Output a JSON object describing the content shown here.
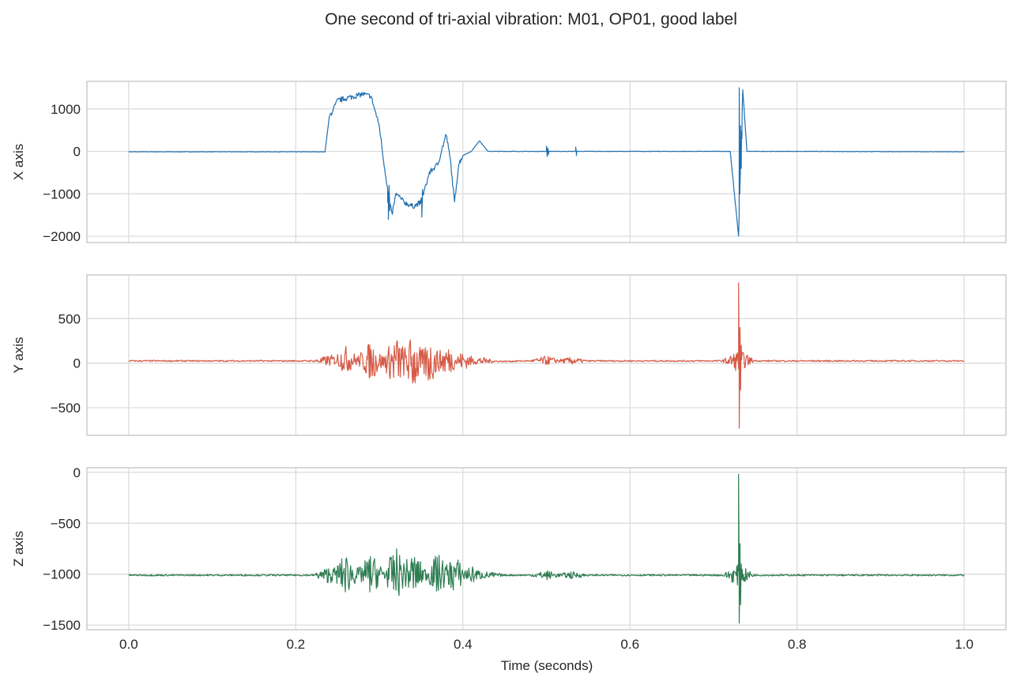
{
  "chart_data": {
    "type": "line",
    "title": "One second of tri-axial vibration: M01, OP01, good label",
    "xlabel": "Time (seconds)",
    "xlim": [
      -0.05,
      1.05
    ],
    "xticks": [
      0.0,
      0.2,
      0.4,
      0.6,
      0.8,
      1.0
    ],
    "xtick_labels": [
      "0.0",
      "0.2",
      "0.4",
      "0.6",
      "0.8",
      "1.0"
    ],
    "grid": true,
    "panels": [
      {
        "ylabel": "X axis",
        "color": "#1f6fb0",
        "ylim": [
          -2150,
          1650
        ],
        "yticks": [
          1000,
          0,
          -1000,
          -2000
        ],
        "ytick_labels": [
          "1000",
          "0",
          "−1000",
          "−2000"
        ],
        "x": [
          0,
          0.1,
          0.2,
          0.235,
          0.24,
          0.25,
          0.26,
          0.27,
          0.28,
          0.29,
          0.3,
          0.305,
          0.31,
          0.315,
          0.32,
          0.33,
          0.34,
          0.35,
          0.36,
          0.37,
          0.38,
          0.385,
          0.39,
          0.395,
          0.4,
          0.41,
          0.42,
          0.43,
          0.45,
          0.5,
          0.52,
          0.535,
          0.55,
          0.6,
          0.7,
          0.72,
          0.73,
          0.735,
          0.74,
          0.76,
          0.8,
          1.0
        ],
        "y": [
          -10,
          -10,
          -10,
          -10,
          800,
          1200,
          1250,
          1300,
          1350,
          1300,
          600,
          -200,
          -900,
          -1500,
          -1000,
          -1200,
          -1300,
          -1200,
          -500,
          -300,
          400,
          -200,
          -1200,
          -300,
          -100,
          0,
          250,
          0,
          0,
          0,
          0,
          0,
          0,
          0,
          0,
          0,
          -2000,
          1450,
          0,
          0,
          0,
          -10
        ],
        "spikes": [
          {
            "x": 0.31,
            "values": [
              -1200,
              -1600,
              -800,
              -1400
            ]
          },
          {
            "x": 0.35,
            "values": [
              -1100,
              -1550,
              -900
            ]
          },
          {
            "x": 0.5,
            "values": [
              120,
              -120,
              80,
              -80
            ]
          },
          {
            "x": 0.535,
            "values": [
              100,
              -100
            ]
          },
          {
            "x": 0.73,
            "values": [
              -2000,
              1500,
              -800,
              600,
              -400,
              300
            ]
          }
        ]
      },
      {
        "ylabel": "Y axis",
        "color": "#d65a46",
        "ylim": [
          -810,
          990
        ],
        "yticks": [
          500,
          0,
          -500
        ],
        "ytick_labels": [
          "500",
          "0",
          "−500"
        ],
        "x": [
          0,
          0.2,
          0.235,
          0.25,
          0.28,
          0.3,
          0.33,
          0.35,
          0.38,
          0.4,
          0.42,
          0.45,
          0.5,
          0.54,
          0.6,
          0.7,
          0.72,
          0.73,
          0.74,
          0.76,
          0.8,
          1.0
        ],
        "y": [
          25,
          25,
          25,
          40,
          30,
          20,
          15,
          0,
          30,
          25,
          25,
          20,
          30,
          25,
          25,
          25,
          25,
          25,
          30,
          25,
          25,
          25
        ],
        "envelope": [
          {
            "x": 0.24,
            "amp": 60
          },
          {
            "x": 0.26,
            "amp": 150
          },
          {
            "x": 0.29,
            "amp": 220
          },
          {
            "x": 0.32,
            "amp": 300
          },
          {
            "x": 0.34,
            "amp": 320
          },
          {
            "x": 0.36,
            "amp": 250
          },
          {
            "x": 0.38,
            "amp": 180
          },
          {
            "x": 0.4,
            "amp": 100
          },
          {
            "x": 0.42,
            "amp": 40
          },
          {
            "x": 0.5,
            "amp": 45
          },
          {
            "x": 0.53,
            "amp": 35
          },
          {
            "x": 0.73,
            "amp": 120
          }
        ],
        "spikes": [
          {
            "x": 0.73,
            "values": [
              900,
              -730,
              400,
              -300,
              200
            ]
          }
        ]
      },
      {
        "ylabel": "Z axis",
        "color": "#2e7d52",
        "ylim": [
          -1545,
          45
        ],
        "yticks": [
          0,
          -500,
          -1000,
          -1500
        ],
        "ytick_labels": [
          "0",
          "−500",
          "−1000",
          "−1500"
        ],
        "x": [
          0,
          0.2,
          0.235,
          0.25,
          0.3,
          0.35,
          0.4,
          0.42,
          0.45,
          0.5,
          0.54,
          0.6,
          0.7,
          0.72,
          0.73,
          0.74,
          0.76,
          0.8,
          1.0
        ],
        "y": [
          -1010,
          -1010,
          -1010,
          -1000,
          -1000,
          -1000,
          -1000,
          -1010,
          -1010,
          -1010,
          -1010,
          -1010,
          -1010,
          -1010,
          -1010,
          -1010,
          -1010,
          -1010,
          -1010
        ],
        "envelope": [
          {
            "x": 0.24,
            "amp": 80
          },
          {
            "x": 0.26,
            "amp": 200
          },
          {
            "x": 0.29,
            "amp": 200
          },
          {
            "x": 0.32,
            "amp": 250
          },
          {
            "x": 0.34,
            "amp": 220
          },
          {
            "x": 0.37,
            "amp": 200
          },
          {
            "x": 0.39,
            "amp": 180
          },
          {
            "x": 0.41,
            "amp": 80
          },
          {
            "x": 0.43,
            "amp": 30
          },
          {
            "x": 0.5,
            "amp": 40
          },
          {
            "x": 0.53,
            "amp": 30
          },
          {
            "x": 0.73,
            "amp": 100
          }
        ],
        "spikes": [
          {
            "x": 0.73,
            "values": [
              -20,
              -1480,
              -700,
              -1300,
              -900
            ]
          }
        ]
      }
    ]
  }
}
